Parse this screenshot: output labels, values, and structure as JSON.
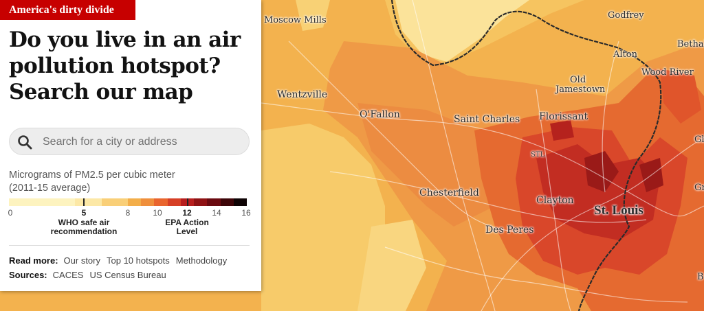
{
  "panel": {
    "kicker": "America's dirty divide",
    "headline": "Do you live in an air pollution hotspot? Search our map",
    "search": {
      "placeholder": "Search for a city or address",
      "value": ""
    },
    "legend": {
      "title_line1": "Micrograms of PM2.5 per cubic meter",
      "title_line2": "(2011-15 average)",
      "ticks": [
        "0",
        "5",
        "8",
        "10",
        "12",
        "14",
        "16"
      ],
      "who_note_line1": "WHO safe air",
      "who_note_line2": "recommendation",
      "epa_note_line1": "EPA Action",
      "epa_note_line2": "Level",
      "colors": [
        "#fdf3bf",
        "#fdf3bf",
        "#fdf3bf",
        "#fdf3bf",
        "#fdf3bf",
        "#fce8a6",
        "#fce8a6",
        "#f9cf78",
        "#f9cf78",
        "#f3ae4a",
        "#ef8f3c",
        "#e9652e",
        "#d63f26",
        "#b71e1e",
        "#8f1214",
        "#6a0a10",
        "#3d0508",
        "#0e0304"
      ]
    },
    "read_more": {
      "label": "Read more:",
      "links": [
        "Our story",
        "Top 10 hotspots",
        "Methodology"
      ]
    },
    "sources": {
      "label": "Sources:",
      "links": [
        "CACES",
        "US Census Bureau"
      ]
    }
  },
  "map": {
    "places": [
      "Moscow Mills",
      "Godfrey",
      "Bethalto",
      "Alton",
      "Wood River",
      "Old",
      "Jamestown",
      "Wentzville",
      "O'Fallon",
      "Saint Charles",
      "Florissant",
      "STL",
      "Chesterfield",
      "Clayton",
      "St. Louis",
      "Des Peres",
      "Gl",
      "Gr",
      "B"
    ]
  }
}
